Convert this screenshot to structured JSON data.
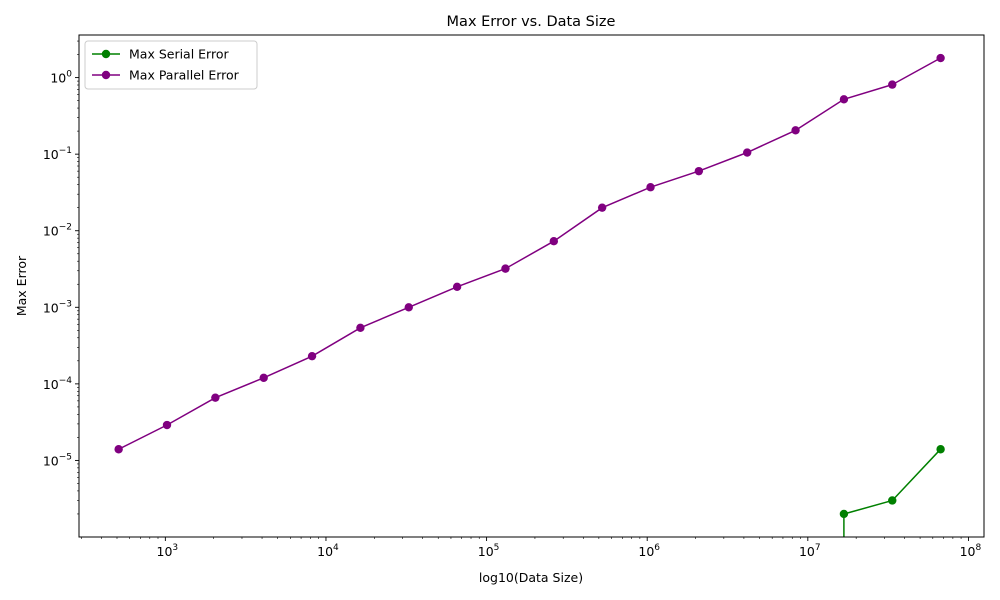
{
  "chart_data": {
    "type": "line",
    "title": "Max Error vs. Data Size",
    "xlabel": "log10(Data Size)",
    "ylabel": "Max Error",
    "x_scale": "log",
    "y_scale": "log",
    "xlim": [
      290,
      125000000
    ],
    "ylim": [
      1e-06,
      3.6
    ],
    "x_ticks": [
      {
        "value": 1000,
        "base": "10",
        "exp": "3"
      },
      {
        "value": 10000,
        "base": "10",
        "exp": "4"
      },
      {
        "value": 100000,
        "base": "10",
        "exp": "5"
      },
      {
        "value": 1000000,
        "base": "10",
        "exp": "6"
      },
      {
        "value": 10000000,
        "base": "10",
        "exp": "7"
      },
      {
        "value": 100000000,
        "base": "10",
        "exp": "8"
      }
    ],
    "y_ticks": [
      {
        "value": 1e-05,
        "base": "10",
        "exp": "−5"
      },
      {
        "value": 0.0001,
        "base": "10",
        "exp": "−4"
      },
      {
        "value": 0.001,
        "base": "10",
        "exp": "−3"
      },
      {
        "value": 0.01,
        "base": "10",
        "exp": "−2"
      },
      {
        "value": 0.1,
        "base": "10",
        "exp": "−1"
      },
      {
        "value": 1,
        "base": "10",
        "exp": "0"
      }
    ],
    "grid": false,
    "legend_position": "top-left",
    "series": [
      {
        "name": "Max Serial Error",
        "color": "#008000",
        "x": [
          16777216,
          33554432,
          67108864
        ],
        "y": [
          2e-06,
          3e-06,
          1.4e-05
        ],
        "drops_below_axis_from_x": 16777216
      },
      {
        "name": "Max Parallel Error",
        "color": "#800080",
        "x": [
          512,
          1024,
          2048,
          4096,
          8192,
          16384,
          32768,
          65536,
          131072,
          262144,
          524288,
          1048576,
          2097152,
          4194304,
          8388608,
          16777216,
          33554432,
          67108864
        ],
        "y": [
          1.4e-05,
          2.9e-05,
          6.6e-05,
          0.00012,
          0.00023,
          0.00054,
          0.001,
          0.00185,
          0.0032,
          0.0073,
          0.02,
          0.037,
          0.06,
          0.105,
          0.205,
          0.52,
          0.81,
          1.8
        ]
      }
    ]
  }
}
